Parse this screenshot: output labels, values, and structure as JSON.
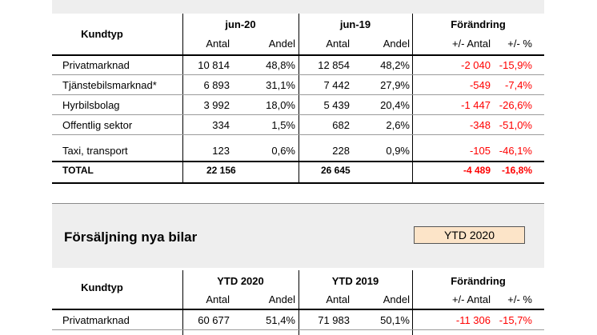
{
  "table1": {
    "header": {
      "kundtyp": "Kundtyp",
      "period_a": "jun-20",
      "period_b": "jun-19",
      "change": "Förändring",
      "antal": "Antal",
      "andel": "Andel",
      "diff_antal": "+/- Antal",
      "diff_pct": "+/- %"
    },
    "rows": [
      {
        "label": "Privatmarknad",
        "a_antal": "10 814",
        "a_andel": "48,8%",
        "b_antal": "12 854",
        "b_andel": "48,2%",
        "diff": "-2 040",
        "pct": "-15,9%"
      },
      {
        "label": "Tjänstebilsmarknad*",
        "a_antal": "6 893",
        "a_andel": "31,1%",
        "b_antal": "7 442",
        "b_andel": "27,9%",
        "diff": "-549",
        "pct": "-7,4%"
      },
      {
        "label": "Hyrbilsbolag",
        "a_antal": "3 992",
        "a_andel": "18,0%",
        "b_antal": "5 439",
        "b_andel": "20,4%",
        "diff": "-1 447",
        "pct": "-26,6%"
      },
      {
        "label": "Offentlig sektor",
        "a_antal": "334",
        "a_andel": "1,5%",
        "b_antal": "682",
        "b_andel": "2,6%",
        "diff": "-348",
        "pct": "-51,0%"
      },
      {
        "label": "Taxi, transport",
        "a_antal": "123",
        "a_andel": "0,6%",
        "b_antal": "228",
        "b_andel": "0,9%",
        "diff": "-105",
        "pct": "-46,1%"
      }
    ],
    "total": {
      "label": "TOTAL",
      "a_antal": "22 156",
      "b_antal": "26 645",
      "diff": "-4 489",
      "pct": "-16,8%"
    }
  },
  "section2": {
    "title": "Försäljning nya bilar",
    "selector": "YTD 2020"
  },
  "table2": {
    "header": {
      "kundtyp": "Kundtyp",
      "period_a": "YTD 2020",
      "period_b": "YTD 2019",
      "change": "Förändring",
      "antal": "Antal",
      "andel": "Andel",
      "diff_antal": "+/- Antal",
      "diff_pct": "+/- %"
    },
    "rows": [
      {
        "label": "Privatmarknad",
        "a_antal": "60 677",
        "a_andel": "51,4%",
        "b_antal": "71 983",
        "b_andel": "50,1%",
        "diff": "-11 306",
        "pct": "-15,7%"
      }
    ]
  },
  "colors": {
    "negative": "#ff0000",
    "selector_bg": "#fce4c8",
    "band": "#eeeeee"
  }
}
